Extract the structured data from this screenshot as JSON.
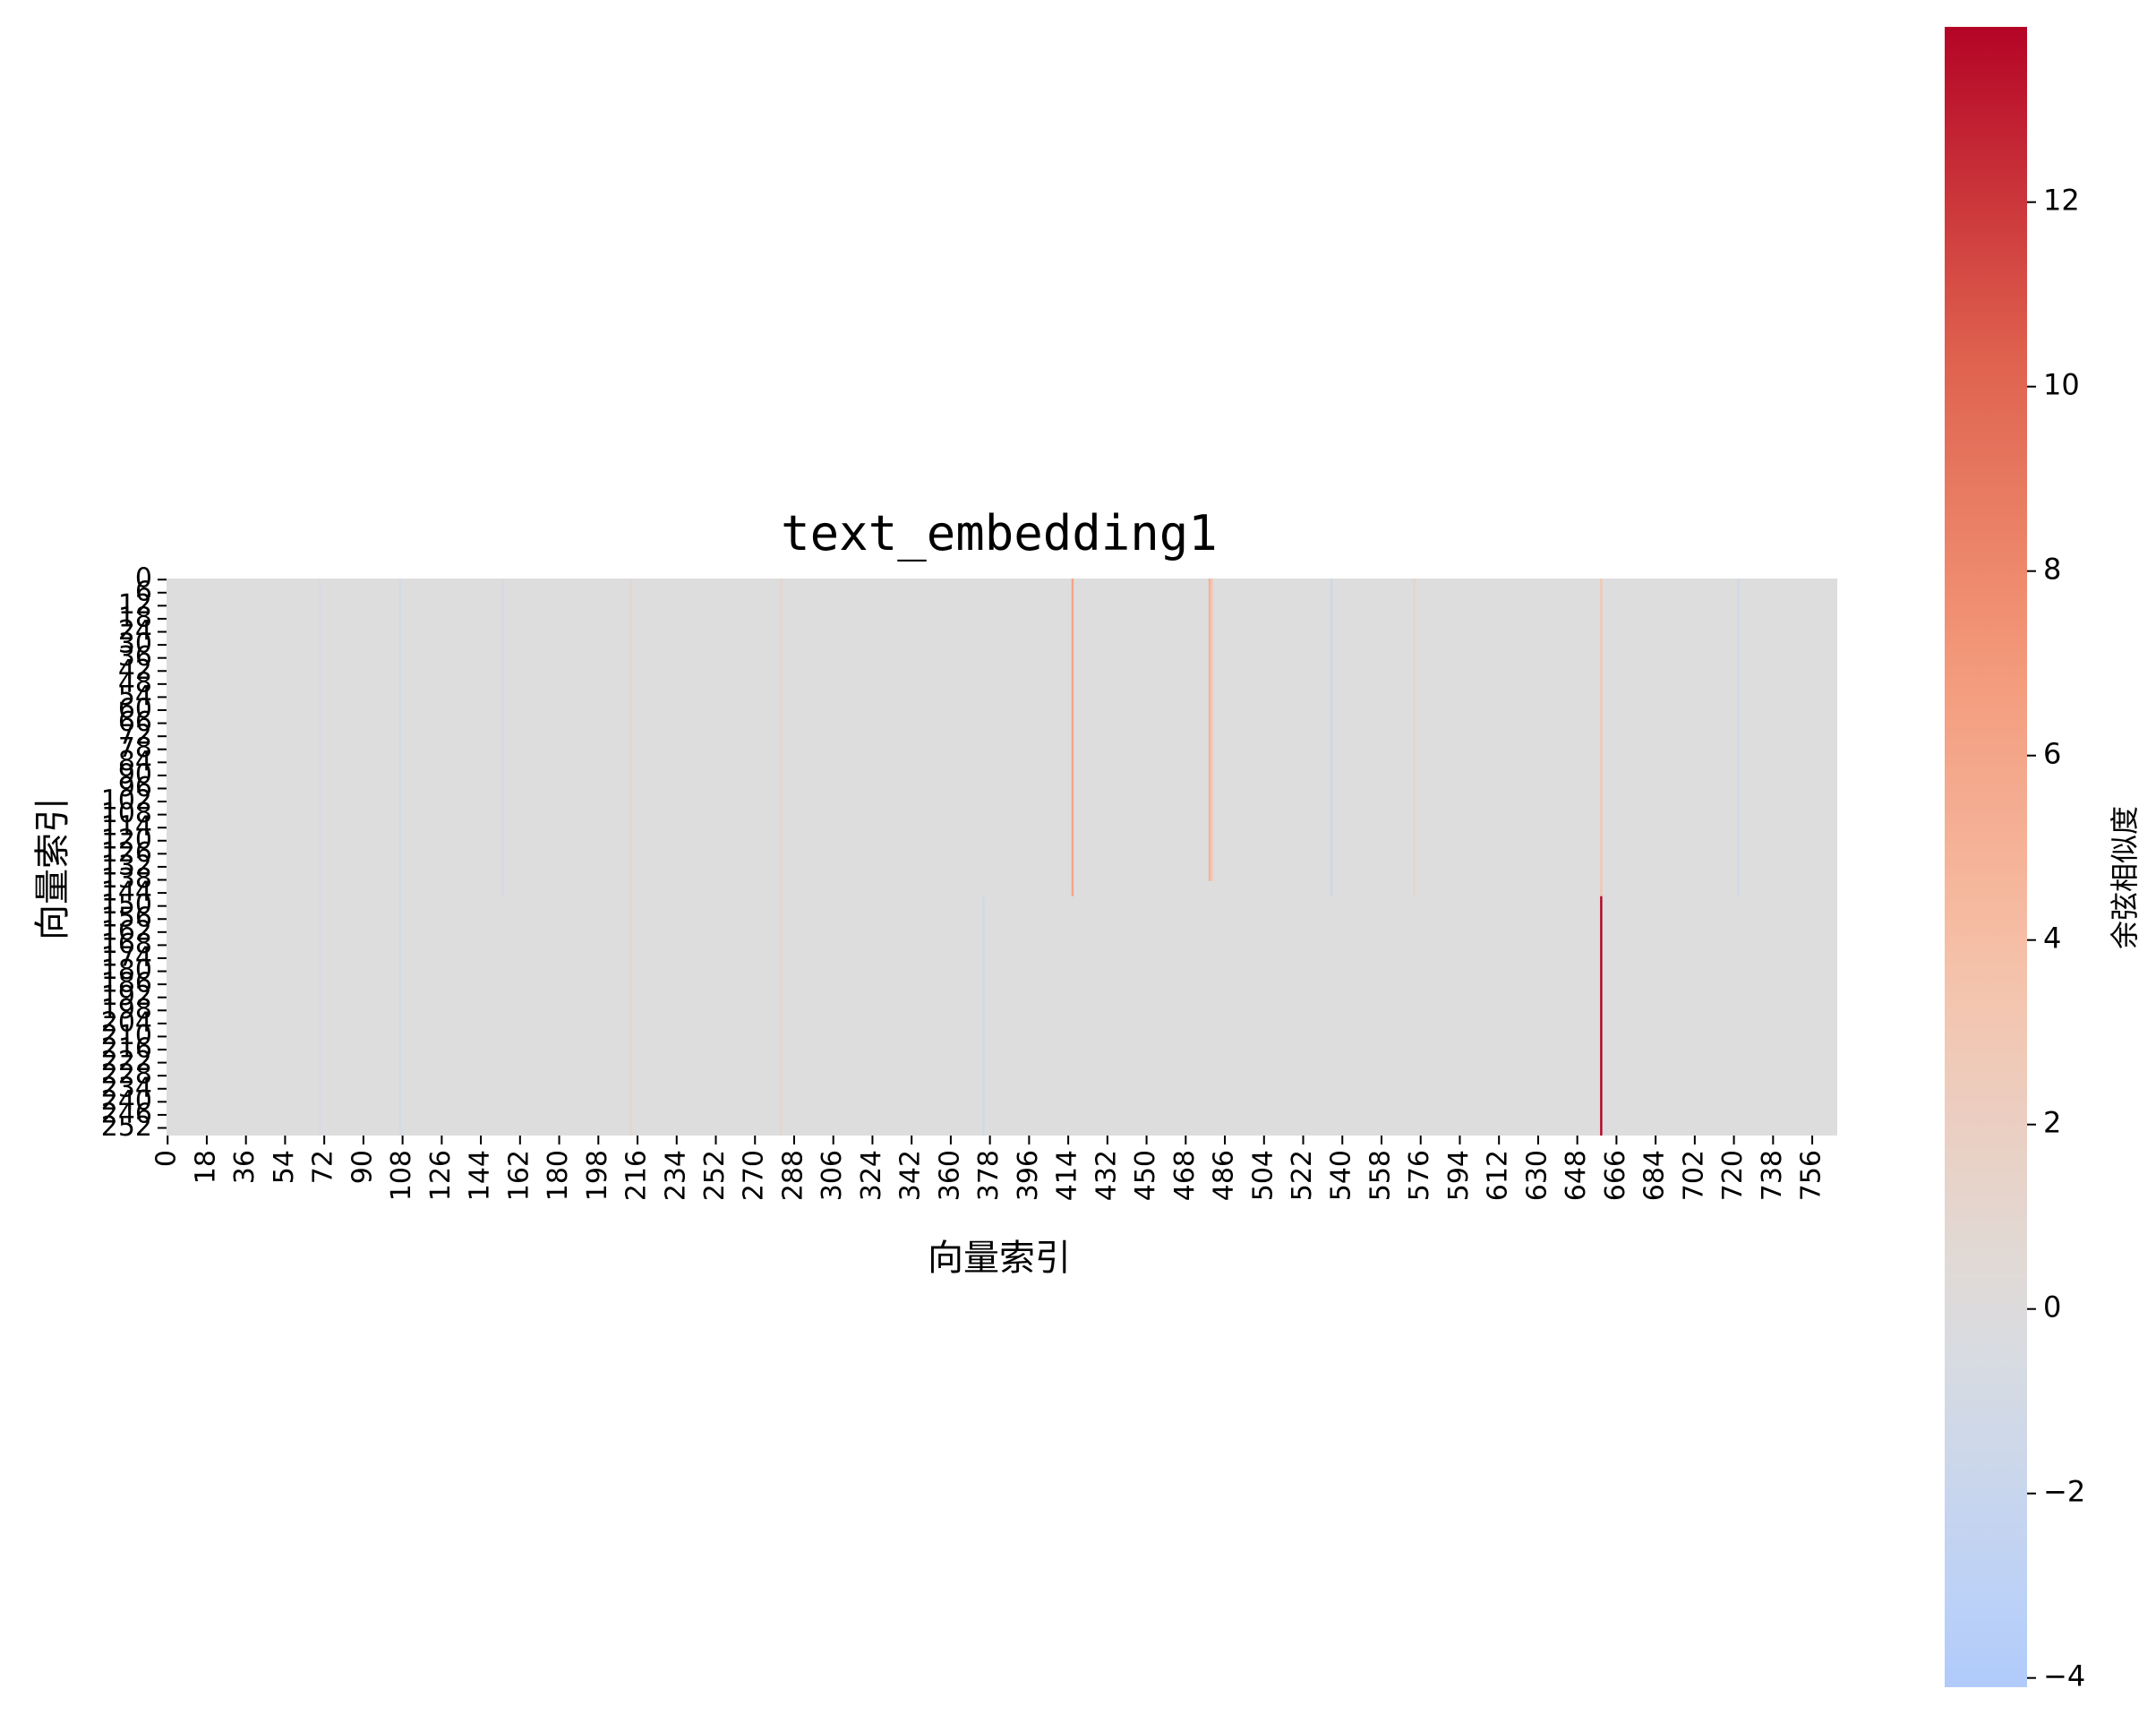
{
  "chart_data": {
    "type": "heatmap",
    "title": "text_embedding1",
    "xlabel": "向量索引",
    "ylabel": "向量索引",
    "colorbar_label": "余弦相似度",
    "rows": 256,
    "cols": 768,
    "x_tick_labels": [
      "0",
      "18",
      "36",
      "54",
      "72",
      "90",
      "108",
      "126",
      "144",
      "162",
      "180",
      "198",
      "216",
      "234",
      "252",
      "270",
      "288",
      "306",
      "324",
      "342",
      "360",
      "378",
      "396",
      "414",
      "432",
      "450",
      "468",
      "486",
      "504",
      "522",
      "540",
      "558",
      "576",
      "594",
      "612",
      "630",
      "648",
      "666",
      "684",
      "702",
      "720",
      "738",
      "756"
    ],
    "y_tick_labels": [
      "0",
      "6",
      "12",
      "18",
      "24",
      "30",
      "36",
      "42",
      "48",
      "54",
      "60",
      "66",
      "72",
      "78",
      "84",
      "90",
      "96",
      "102",
      "108",
      "114",
      "120",
      "126",
      "132",
      "138",
      "144",
      "150",
      "156",
      "162",
      "168",
      "174",
      "180",
      "186",
      "192",
      "198",
      "204",
      "210",
      "216",
      "222",
      "228",
      "234",
      "240",
      "246",
      "252"
    ],
    "colorbar_ticks": [
      -4,
      -2,
      0,
      2,
      4,
      6,
      8,
      10,
      12
    ],
    "colorbar_tick_labels": [
      "−4",
      "−2",
      "0",
      "2",
      "4",
      "6",
      "8",
      "10",
      "12"
    ],
    "vmin": -4.1,
    "vmax": 13.9,
    "colormap": "coolwarm",
    "base_value": 0,
    "column_features": [
      {
        "col": 416,
        "row_start": 0,
        "row_end": 145,
        "value": 6
      },
      {
        "col": 479,
        "row_start": 0,
        "row_end": 138,
        "value": 5
      },
      {
        "col": 480,
        "row_start": 0,
        "row_end": 138,
        "value": 3
      },
      {
        "col": 659,
        "row_start": 0,
        "row_end": 145,
        "value": 3
      },
      {
        "col": 659,
        "row_start": 146,
        "row_end": 255,
        "value": 13.9
      },
      {
        "col": 535,
        "row_start": 0,
        "row_end": 145,
        "value": -1.5
      },
      {
        "col": 722,
        "row_start": 0,
        "row_end": 145,
        "value": -1.2
      },
      {
        "col": 375,
        "row_start": 146,
        "row_end": 255,
        "value": -1.2
      },
      {
        "col": 573,
        "row_start": 0,
        "row_end": 145,
        "value": 1.2
      },
      {
        "col": 282,
        "row_start": 0,
        "row_end": 255,
        "value": 1.0
      },
      {
        "col": 213,
        "row_start": 0,
        "row_end": 255,
        "value": 0.9
      },
      {
        "col": 107,
        "row_start": 0,
        "row_end": 255,
        "value": -0.8
      },
      {
        "col": 70,
        "row_start": 0,
        "row_end": 255,
        "value": -0.7
      },
      {
        "col": 154,
        "row_start": 0,
        "row_end": 145,
        "value": -0.7
      }
    ]
  }
}
